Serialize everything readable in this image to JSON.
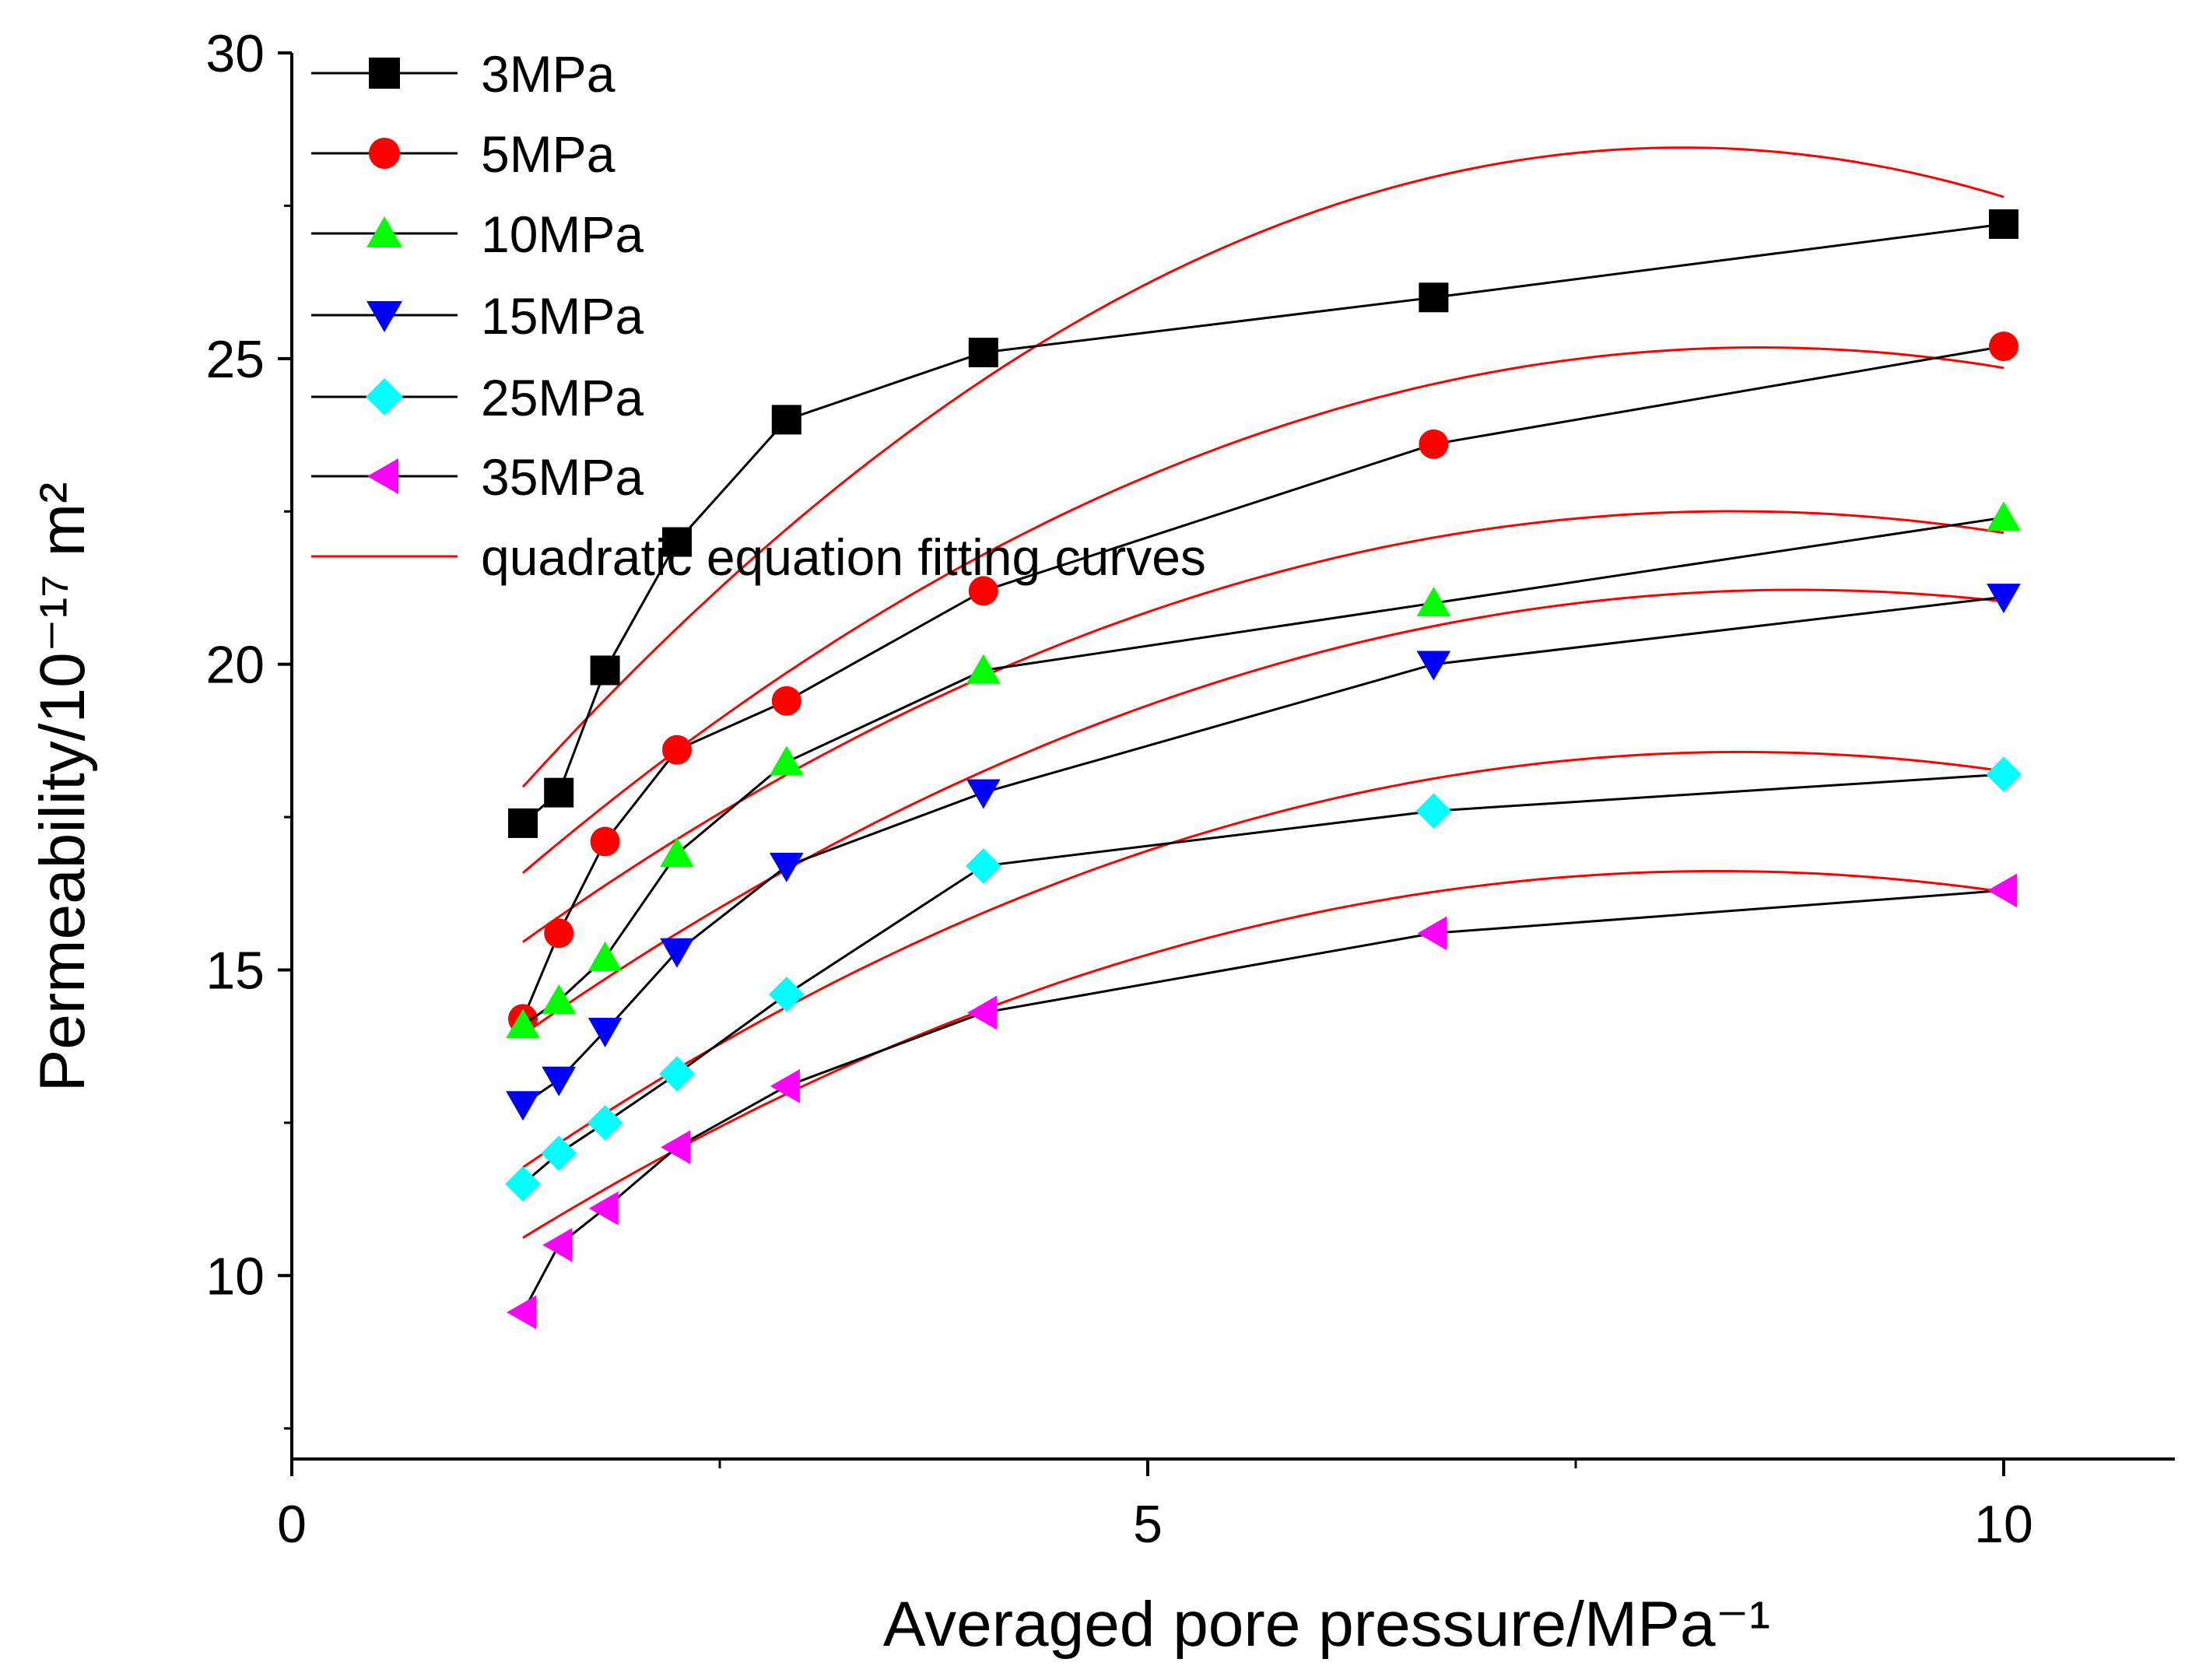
{
  "chart_data": {
    "type": "line",
    "title": "",
    "xlabel": "Averaged pore pressure/MPa⁻¹",
    "ylabel": "Permeability/10⁻¹⁷ m²",
    "xlim": [
      0,
      11
    ],
    "ylim": [
      7,
      30
    ],
    "xticks": [
      0,
      5,
      10
    ],
    "xtick_labels": [
      "0",
      "5",
      "10"
    ],
    "yticks": [
      10,
      15,
      20,
      25,
      30
    ],
    "ytick_labels": [
      "10",
      "15",
      "20",
      "25",
      "30"
    ],
    "grid": false,
    "legend_position": "top-left",
    "x": [
      1.35,
      1.56,
      1.83,
      2.25,
      2.89,
      4.04,
      6.67,
      10.0
    ],
    "series": [
      {
        "name": "3MPa",
        "marker": "square",
        "color": "#000000",
        "values": [
          17.4,
          17.9,
          19.9,
          22.0,
          24.0,
          25.1,
          26.0,
          27.2
        ]
      },
      {
        "name": "5MPa",
        "marker": "circle",
        "color": "#ff0000",
        "values": [
          14.2,
          15.6,
          17.1,
          18.6,
          19.4,
          21.2,
          23.6,
          25.2
        ]
      },
      {
        "name": "10MPa",
        "marker": "triangle-up",
        "color": "#00ff00",
        "values": [
          14.1,
          14.5,
          15.2,
          16.9,
          18.4,
          19.9,
          21.0,
          22.4
        ]
      },
      {
        "name": "15MPa",
        "marker": "triangle-down",
        "color": "#0000ff",
        "values": [
          12.8,
          13.2,
          14.0,
          15.3,
          16.7,
          17.9,
          20.0,
          21.1
        ]
      },
      {
        "name": "25MPa",
        "marker": "diamond",
        "color": "#00ffff",
        "values": [
          11.5,
          12.0,
          12.5,
          13.3,
          14.6,
          16.7,
          17.6,
          18.2
        ]
      },
      {
        "name": "35MPa",
        "marker": "triangle-left",
        "color": "#ff00ff",
        "values": [
          9.4,
          10.5,
          11.1,
          12.1,
          13.1,
          14.3,
          15.6,
          16.3
        ]
      }
    ],
    "fit_label": "quadratic equation fitting curves",
    "fit_color": "#ff0000",
    "fit_curves": [
      {
        "series": "3MPa",
        "a": -0.2282,
        "b": 3.7058,
        "c": 13.407
      },
      {
        "series": "5MPa",
        "a": -0.1646,
        "b": 2.8232,
        "c": 13.076
      },
      {
        "series": "10MPa",
        "a": -0.141,
        "b": 2.374,
        "c": 12.51
      },
      {
        "series": "15MPa",
        "a": -0.1312,
        "b": 2.308,
        "c": 11.067
      },
      {
        "series": "25MPa",
        "a": -0.134,
        "b": 2.27,
        "c": 8.951
      },
      {
        "series": "35MPa",
        "a": -0.123,
        "b": 2.05,
        "c": 8.075
      }
    ]
  }
}
